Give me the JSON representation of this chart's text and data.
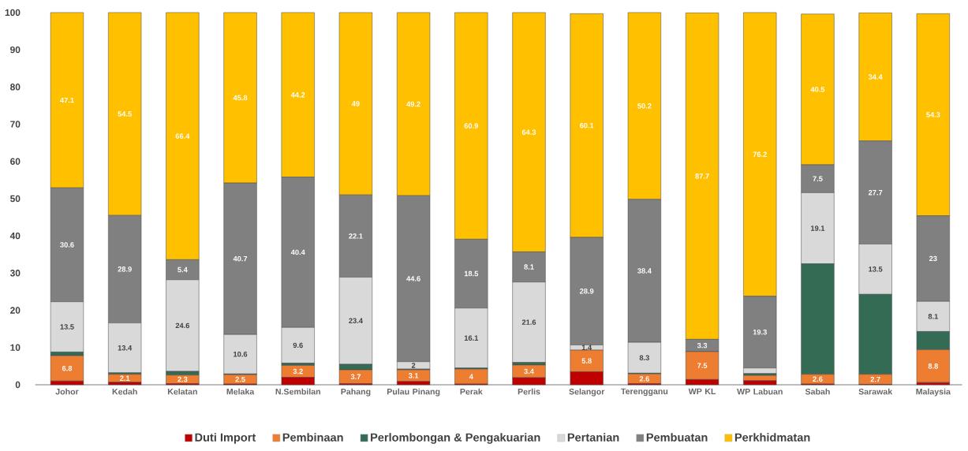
{
  "chart_data": {
    "type": "bar",
    "stacked": true,
    "legend": "bottom",
    "categories": [
      "Johor",
      "Kedah",
      "Kelatan",
      "Melaka",
      "N.Sembilan",
      "Pahang",
      "Pulau Pinang",
      "Perak",
      "Perlis",
      "Selangor",
      "Terengganu",
      "WP  KL",
      "WP  Labuan",
      "Sabah",
      "Sarawak",
      "Malaysia"
    ],
    "ylim": [
      0,
      100
    ],
    "yticks": [
      0,
      10,
      20,
      30,
      40,
      50,
      60,
      70,
      80,
      90,
      100
    ],
    "series": [
      {
        "name": "Duti Import",
        "color": "#c00000",
        "values": [
          1.0,
          0.7,
          0.3,
          0.2,
          2.0,
          0.3,
          0.9,
          0.2,
          1.9,
          3.5,
          0.3,
          1.4,
          1.1,
          0.2,
          0.1,
          0.6
        ],
        "value_labels": [
          null,
          null,
          null,
          null,
          null,
          null,
          null,
          null,
          null,
          null,
          null,
          null,
          null,
          null,
          null,
          null
        ]
      },
      {
        "name": "Pembinaan",
        "color": "#ed7d31",
        "values": [
          6.8,
          2.1,
          2.3,
          2.5,
          3.2,
          3.7,
          3.1,
          4,
          3.4,
          5.8,
          2.6,
          7.5,
          1.4,
          2.6,
          2.7,
          8.8
        ],
        "value_labels": [
          "6.8",
          "2.1",
          "2.3",
          "2.5",
          "3.2",
          "3.7",
          "3.1",
          "4",
          "3.4",
          "5.8",
          "2.6",
          "7.5",
          null,
          "2.6",
          "2.7",
          "8.8"
        ]
      },
      {
        "name": "Perlombongan & Pengakuarian",
        "color": "#336b55",
        "values": [
          1.0,
          0.4,
          1.0,
          0.2,
          0.6,
          1.5,
          0.2,
          0.3,
          0.7,
          null,
          0.2,
          0,
          0.5,
          29.7,
          21.5,
          4.9
        ],
        "value_labels": [
          null,
          null,
          null,
          null,
          null,
          null,
          null,
          null,
          null,
          null,
          null,
          null,
          null,
          null,
          null,
          null
        ]
      },
      {
        "name": "Pertanian",
        "color": "#d9d9d9",
        "values": [
          13.5,
          13.4,
          24.6,
          10.6,
          9.6,
          23.4,
          2,
          16.1,
          21.6,
          1.4,
          8.3,
          null,
          1.5,
          19.1,
          13.5,
          8.1
        ],
        "value_labels": [
          "13.5",
          "13.4",
          "24.6",
          "10.6",
          "9.6",
          "23.4",
          "2",
          "16.1",
          "21.6",
          "1.4",
          "8.3",
          null,
          null,
          "19.1",
          "13.5",
          "8.1"
        ]
      },
      {
        "name": "Pembuatan",
        "color": "#808080",
        "values": [
          30.6,
          28.9,
          5.4,
          40.7,
          40.4,
          22.1,
          44.6,
          18.5,
          8.1,
          28.9,
          38.4,
          3.3,
          19.3,
          7.5,
          27.7,
          23
        ],
        "value_labels": [
          "30.6",
          "28.9",
          "5.4",
          "40.7",
          "40.4",
          "22.1",
          "44.6",
          "18.5",
          "8.1",
          "28.9",
          "38.4",
          "3.3",
          "19.3",
          "7.5",
          "27.7",
          "23"
        ]
      },
      {
        "name": "Perkhidmatan",
        "color": "#ffc000",
        "values": [
          47.1,
          54.5,
          66.4,
          45.8,
          44.2,
          49,
          49.2,
          60.9,
          64.3,
          60.1,
          50.2,
          87.7,
          76.2,
          40.5,
          34.4,
          54.3
        ],
        "value_labels": [
          "47.1",
          "54.5",
          "66.4",
          "45.8",
          "44.2",
          "49",
          "49.2",
          "60.9",
          "64.3",
          "60.1",
          "50.2",
          "87.7",
          "76.2",
          "40.5",
          "34.4",
          "54.3"
        ]
      }
    ]
  }
}
